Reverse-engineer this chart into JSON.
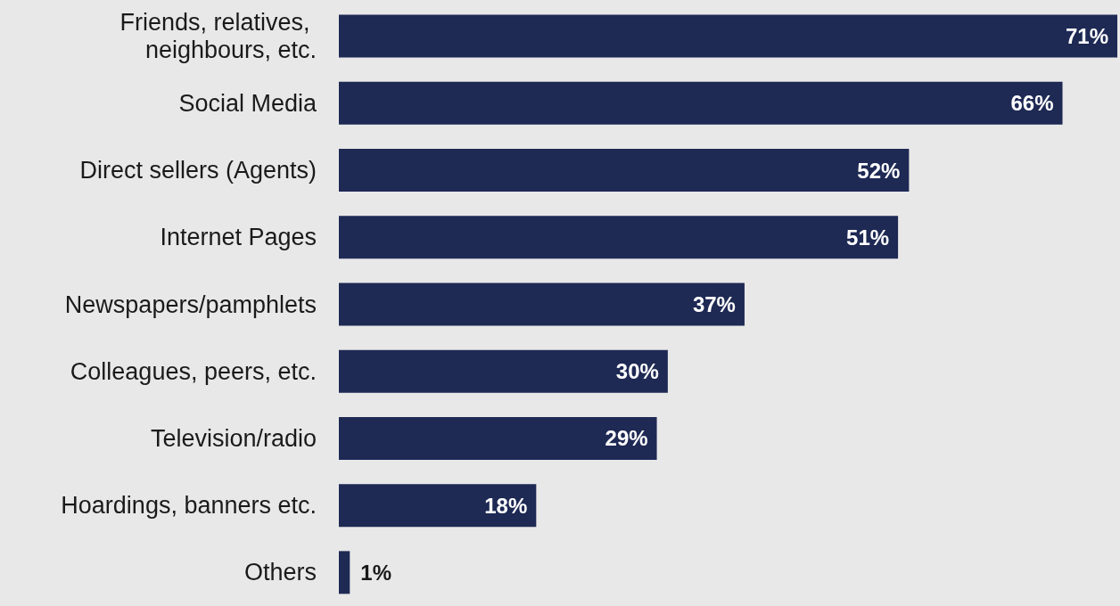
{
  "chart_data": {
    "type": "bar",
    "orientation": "horizontal",
    "categories": [
      "Friends, relatives, neighbours, etc.",
      "Social Media",
      "Direct sellers (Agents)",
      "Internet Pages",
      "Newspapers/pamphlets",
      "Colleagues, peers, etc.",
      "Television/radio",
      "Hoardings, banners etc.",
      "Others"
    ],
    "values": [
      71,
      66,
      52,
      51,
      37,
      30,
      29,
      18,
      1
    ],
    "value_labels": [
      "71%",
      "66%",
      "52%",
      "51%",
      "37%",
      "30%",
      "29%",
      "18%",
      "1%"
    ],
    "color": "#1e2954"
  }
}
